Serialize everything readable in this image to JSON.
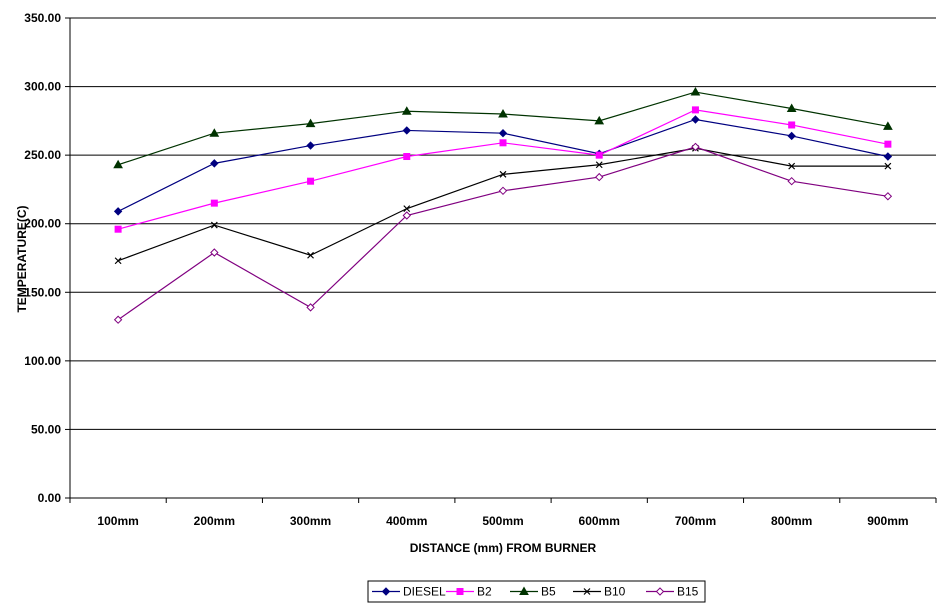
{
  "chart_data": {
    "type": "line",
    "xlabel": "DISTANCE (mm) FROM BURNER",
    "ylabel": "TEMPERATURE(C)",
    "ylim": [
      0,
      350
    ],
    "y_ticks": [
      "0.00",
      "50.00",
      "100.00",
      "150.00",
      "200.00",
      "250.00",
      "300.00",
      "350.00"
    ],
    "grid": "horizontal",
    "legend_position": "bottom",
    "categories": [
      "100mm",
      "200mm",
      "300mm",
      "400mm",
      "500mm",
      "600mm",
      "700mm",
      "800mm",
      "900mm"
    ],
    "series": [
      {
        "name": "DIESEL",
        "color": "#000080",
        "marker": "diamond-filled",
        "values": [
          209,
          244,
          257,
          268,
          266,
          251,
          276,
          264,
          249
        ]
      },
      {
        "name": "B2",
        "color": "#FF00FF",
        "marker": "square-filled",
        "values": [
          196,
          215,
          231,
          249,
          259,
          250,
          283,
          272,
          258
        ]
      },
      {
        "name": "B5",
        "color": "#003300",
        "marker": "triangle-filled",
        "values": [
          243,
          266,
          273,
          282,
          280,
          275,
          296,
          284,
          271
        ]
      },
      {
        "name": "B10",
        "color": "#000000",
        "marker": "x",
        "values": [
          173,
          199,
          177,
          211,
          236,
          243,
          255,
          242,
          242
        ]
      },
      {
        "name": "B15",
        "color": "#800080",
        "marker": "diamond-open",
        "values": [
          130,
          179,
          139,
          206,
          224,
          234,
          256,
          231,
          220
        ]
      }
    ]
  }
}
